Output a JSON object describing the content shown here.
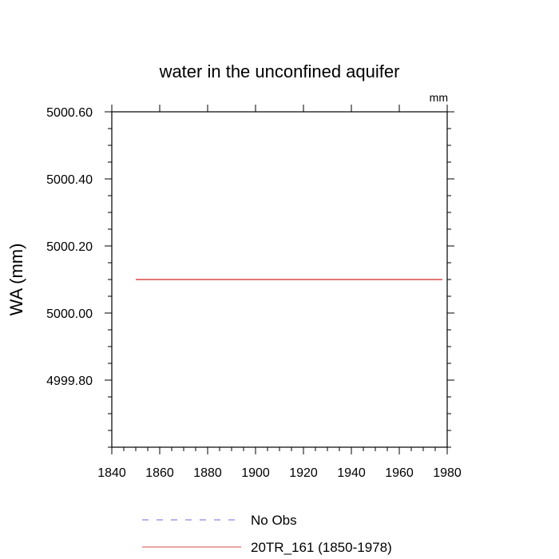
{
  "chart_data": {
    "type": "line",
    "title": "water in the unconfined aquifer",
    "units": "mm",
    "ylabel": "WA  (mm)",
    "xlabel": "",
    "xlim": [
      1840,
      1980
    ],
    "ylim": [
      4999.6,
      5000.6
    ],
    "x_ticks": [
      1840,
      1860,
      1880,
      1900,
      1920,
      1940,
      1960,
      1980
    ],
    "y_ticks": [
      4999.8,
      5000.0,
      5000.2,
      5000.4,
      5000.6
    ],
    "y_tick_labels": [
      "4999.80",
      "5000.00",
      "5000.20",
      "5000.40",
      "5000.60"
    ],
    "grid": false,
    "legend_position": "bottom",
    "series": [
      {
        "name": "No Obs",
        "color": "#6b6bd6",
        "dash": "dashed",
        "x": [],
        "y": []
      },
      {
        "name": "20TR_161 (1850-1978)",
        "color": "#d94a4a",
        "dash": "solid",
        "x": [
          1850,
          1978
        ],
        "y": [
          5000.1,
          5000.1
        ]
      }
    ]
  }
}
